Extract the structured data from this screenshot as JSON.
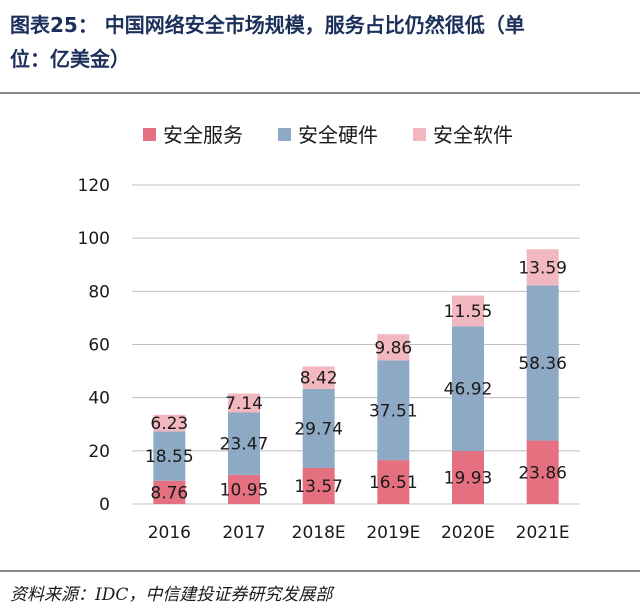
{
  "header": {
    "title_line1": "图表25：  中国网络安全市场规模，服务占比仍然很低（单",
    "title_line2": "位：亿美金）"
  },
  "footer": {
    "source": "资料来源：IDC，中信建投证券研究发展部"
  },
  "colors": {
    "services": "#e5707f",
    "hardware": "#8ea9c4",
    "software": "#f2b8c0",
    "grid": "#bfbfbf"
  },
  "chart_data": {
    "type": "bar",
    "stacked": true,
    "title": "",
    "xlabel": "",
    "ylabel": "",
    "ylim": [
      0,
      120
    ],
    "yticks": [
      0,
      20,
      40,
      60,
      80,
      100,
      120
    ],
    "grid": true,
    "legend_position": "top",
    "categories": [
      "2016",
      "2017",
      "2018E",
      "2019E",
      "2020E",
      "2021E"
    ],
    "series": [
      {
        "name": "安全服务",
        "values": [
          8.76,
          10.95,
          13.57,
          16.51,
          19.93,
          23.86
        ]
      },
      {
        "name": "安全硬件",
        "values": [
          18.55,
          23.47,
          29.74,
          37.51,
          46.92,
          58.36
        ]
      },
      {
        "name": "安全软件",
        "values": [
          6.23,
          7.14,
          8.42,
          9.86,
          11.55,
          13.59
        ]
      }
    ]
  }
}
